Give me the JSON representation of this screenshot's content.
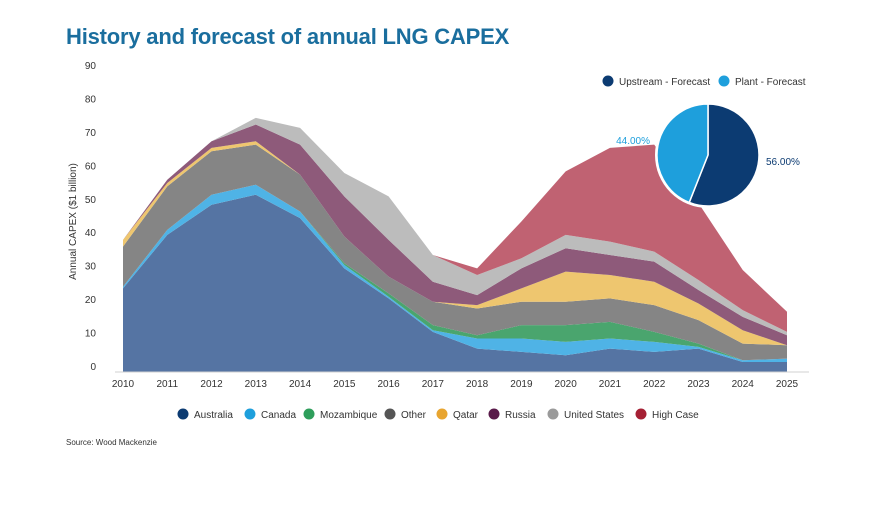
{
  "title": "History and forecast of annual LNG CAPEX",
  "source": "Source: Wood Mackenzie",
  "chart_data": [
    {
      "type": "area",
      "stacked": true,
      "ylabel": "Annual CAPEX ($1 billion)",
      "xlabel": "",
      "ylim": [
        0,
        90
      ],
      "yticks": [
        0,
        10,
        20,
        30,
        40,
        50,
        60,
        70,
        80,
        90
      ],
      "categories": [
        "2010",
        "2011",
        "2012",
        "2013",
        "2014",
        "2015",
        "2016",
        "2017",
        "2018",
        "2019",
        "2020",
        "2021",
        "2022",
        "2023",
        "2024",
        "2025"
      ],
      "legend_position": "bottom",
      "grid": false,
      "series": [
        {
          "name": "Australia",
          "legend_color": "#0c3b72",
          "color": "#5574a3",
          "values": [
            25,
            41,
            50,
            53,
            46,
            31,
            22,
            12,
            7,
            6,
            5,
            7,
            6,
            7,
            3,
            3
          ]
        },
        {
          "name": "Canada",
          "legend_color": "#1e9fdc",
          "color": "#4fb3e6",
          "values": [
            0.5,
            1.5,
            3,
            3,
            2,
            1,
            0.5,
            0.5,
            3,
            4,
            4,
            3,
            3,
            0.5,
            0.5,
            1
          ]
        },
        {
          "name": "Mozambique",
          "legend_color": "#2e9e5b",
          "color": "#4aa56e",
          "values": [
            0,
            0,
            0,
            0,
            0,
            0.5,
            1,
            1.5,
            1,
            4,
            5,
            5,
            3,
            1,
            0,
            0
          ]
        },
        {
          "name": "Other",
          "legend_color": "#555555",
          "color": "#858585",
          "values": [
            12,
            13,
            13,
            12,
            11,
            8,
            5,
            7,
            8,
            7,
            7,
            7,
            8,
            7,
            5,
            4
          ]
        },
        {
          "name": "Qatar",
          "legend_color": "#e8a530",
          "color": "#eec66f",
          "values": [
            2,
            1,
            1,
            1,
            0,
            0,
            0,
            0,
            1,
            4,
            9,
            7,
            7,
            5,
            4,
            0
          ]
        },
        {
          "name": "Russia",
          "legend_color": "#5a1a4a",
          "color": "#8e5a7a",
          "values": [
            0,
            1,
            2,
            5,
            9,
            12,
            11,
            6,
            3,
            6,
            7,
            6,
            6,
            4,
            4,
            3
          ]
        },
        {
          "name": "United States",
          "legend_color": "#9a9a9a",
          "color": "#bcbcbc",
          "values": [
            0,
            0,
            0,
            2,
            5,
            7,
            13,
            8,
            6,
            3,
            4,
            4,
            3,
            3,
            2,
            1
          ]
        },
        {
          "name": "High Case",
          "legend_color": "#a52034",
          "color": "#c06272",
          "values": [
            0,
            0,
            0,
            0,
            0,
            0,
            0,
            0,
            2,
            11,
            19,
            28,
            32,
            23,
            12,
            6
          ]
        }
      ]
    },
    {
      "type": "pie",
      "legend_position": "top-right",
      "slices": [
        {
          "name": "Upstream - Forecast",
          "value": 56.0,
          "label": "56.00%",
          "color": "#0c3b72",
          "legend_color": "#0c3b72"
        },
        {
          "name": "Plant - Forecast",
          "value": 44.0,
          "label": "44.00%",
          "color": "#1e9fdc",
          "legend_color": "#1e9fdc"
        }
      ]
    }
  ]
}
